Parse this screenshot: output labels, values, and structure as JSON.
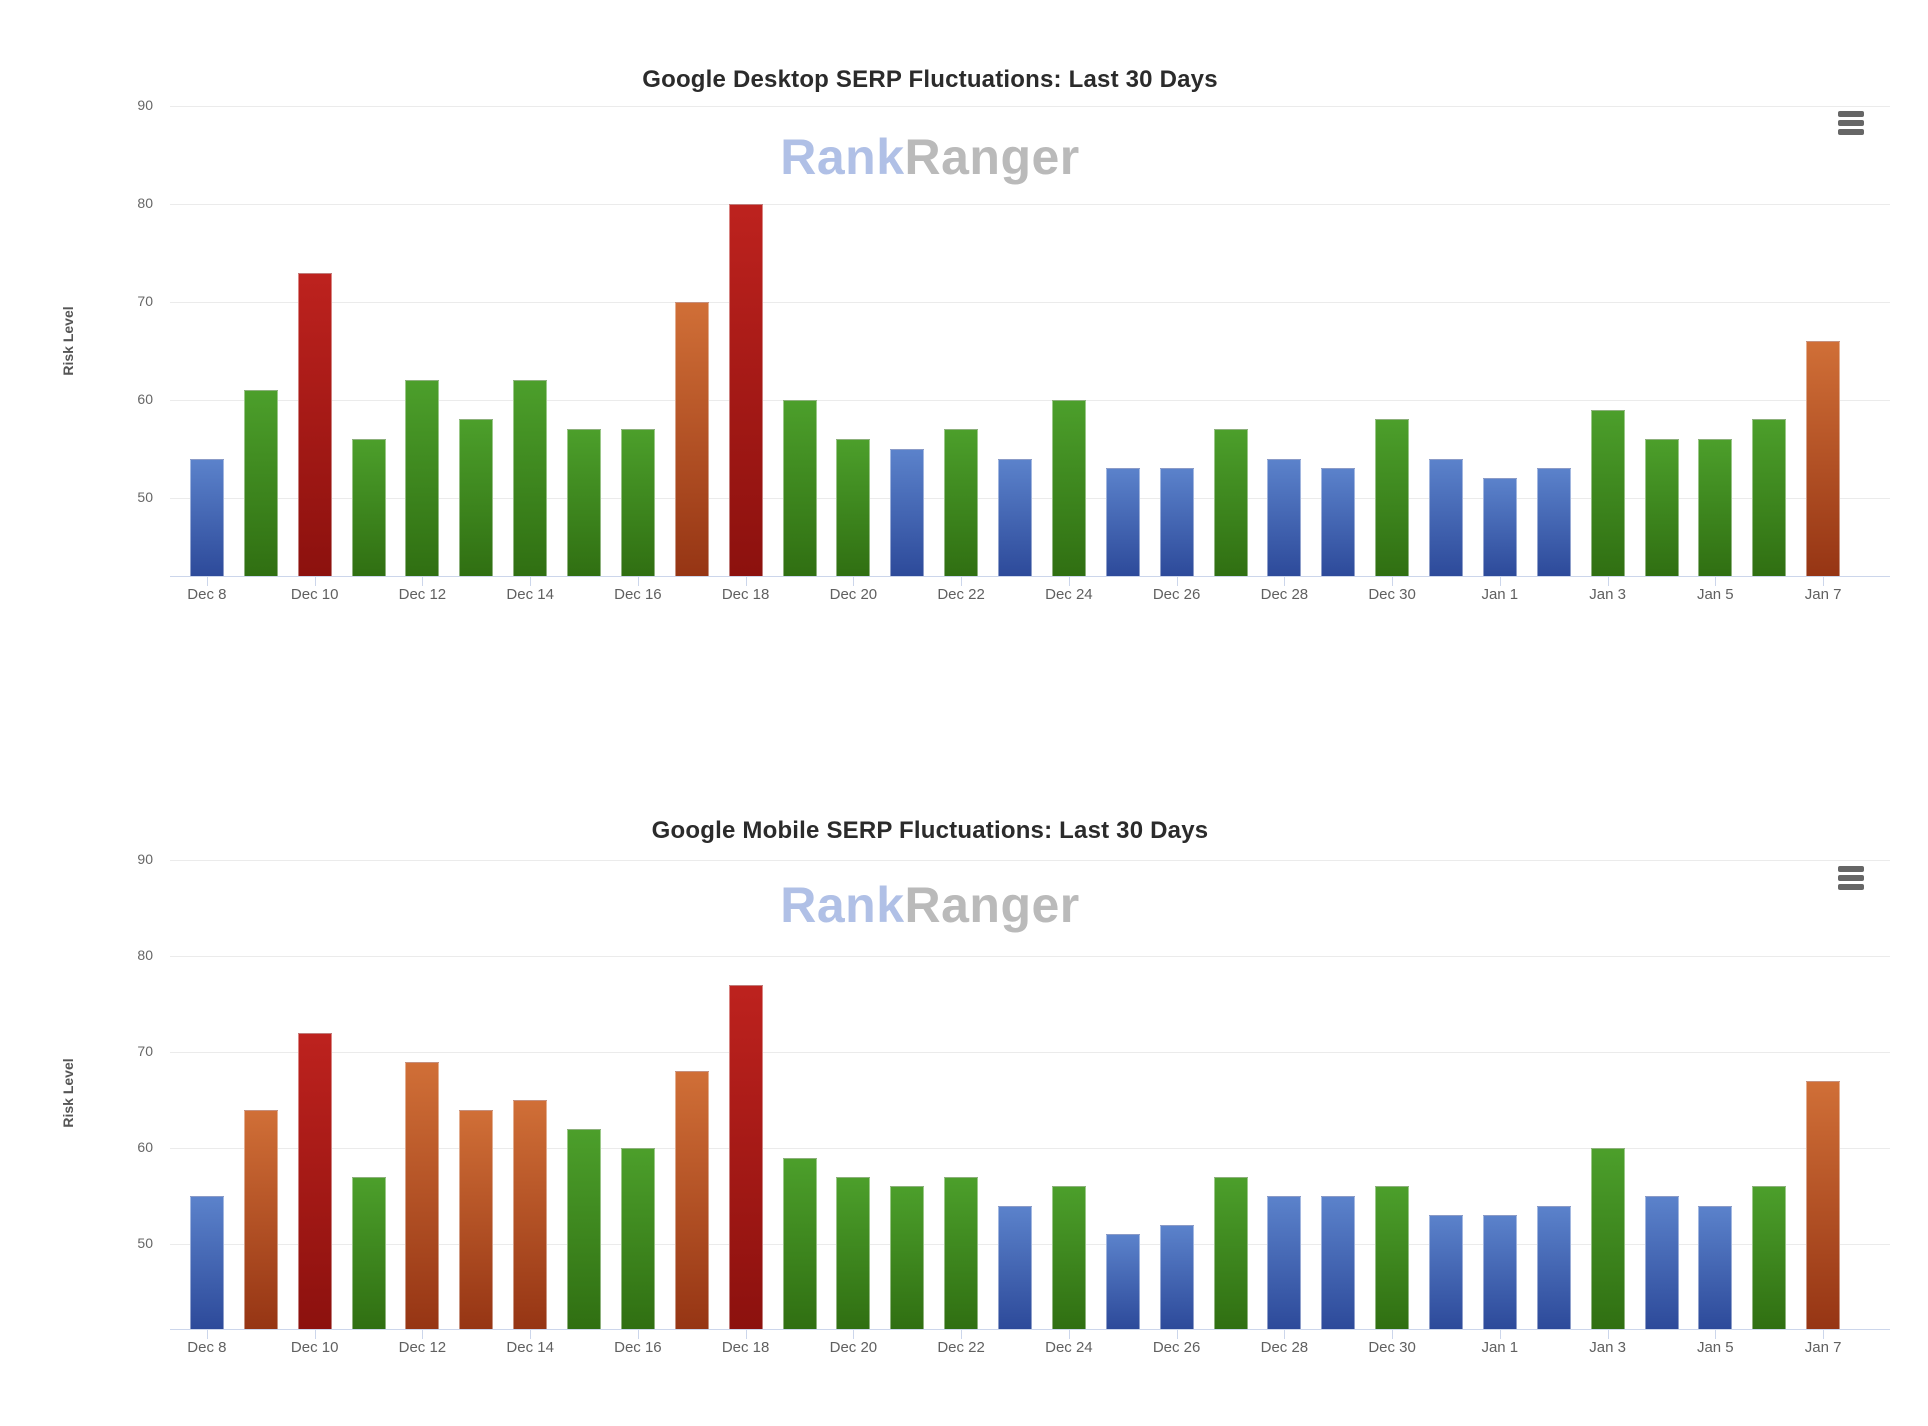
{
  "charts": [
    {
      "title": "Google Desktop SERP Fluctuations: Last 30 Days",
      "watermark": {
        "rank": "Rank",
        "ranger": "Ranger"
      },
      "menu_icon": "hamburger-icon"
    },
    {
      "title": "Google Mobile SERP Fluctuations: Last 30 Days",
      "watermark": {
        "rank": "Rank",
        "ranger": "Ranger"
      },
      "menu_icon": "hamburger-icon"
    }
  ],
  "chart_data": [
    {
      "type": "bar",
      "title": "Google Desktop SERP Fluctuations: Last 30 Days",
      "xlabel": "",
      "ylabel": "Risk Level",
      "yticks": [
        90,
        80,
        70,
        60,
        50
      ],
      "ylim": [
        42,
        91
      ],
      "grid": "horizontal",
      "legend": false,
      "x_tick_step": 2,
      "categories": [
        "Dec 8",
        "Dec 9",
        "Dec 10",
        "Dec 11",
        "Dec 12",
        "Dec 13",
        "Dec 14",
        "Dec 15",
        "Dec 16",
        "Dec 17",
        "Dec 18",
        "Dec 19",
        "Dec 20",
        "Dec 21",
        "Dec 22",
        "Dec 23",
        "Dec 24",
        "Dec 25",
        "Dec 26",
        "Dec 27",
        "Dec 28",
        "Dec 29",
        "Dec 30",
        "Dec 31",
        "Jan 1",
        "Jan 2",
        "Jan 3",
        "Jan 4",
        "Jan 5",
        "Jan 6",
        "Jan 7"
      ],
      "values": [
        54,
        61,
        73,
        56,
        62,
        58,
        62,
        57,
        57,
        70,
        80,
        60,
        56,
        55,
        57,
        54,
        60,
        53,
        53,
        57,
        54,
        53,
        58,
        54,
        52,
        53,
        59,
        56,
        56,
        58,
        66
      ],
      "bar_colors": [
        "blue",
        "green",
        "red",
        "green",
        "green",
        "green",
        "green",
        "green",
        "green",
        "orange",
        "red",
        "green",
        "green",
        "blue",
        "green",
        "blue",
        "green",
        "blue",
        "blue",
        "green",
        "blue",
        "blue",
        "green",
        "blue",
        "blue",
        "blue",
        "green",
        "green",
        "green",
        "green",
        "orange"
      ]
    },
    {
      "type": "bar",
      "title": "Google Mobile SERP Fluctuations: Last 30 Days",
      "xlabel": "",
      "ylabel": "Risk Level",
      "yticks": [
        90,
        80,
        70,
        60,
        50
      ],
      "ylim": [
        41,
        91
      ],
      "grid": "horizontal",
      "legend": false,
      "x_tick_step": 2,
      "categories": [
        "Dec 8",
        "Dec 9",
        "Dec 10",
        "Dec 11",
        "Dec 12",
        "Dec 13",
        "Dec 14",
        "Dec 15",
        "Dec 16",
        "Dec 17",
        "Dec 18",
        "Dec 19",
        "Dec 20",
        "Dec 21",
        "Dec 22",
        "Dec 23",
        "Dec 24",
        "Dec 25",
        "Dec 26",
        "Dec 27",
        "Dec 28",
        "Dec 29",
        "Dec 30",
        "Dec 31",
        "Jan 1",
        "Jan 2",
        "Jan 3",
        "Jan 4",
        "Jan 5",
        "Jan 6",
        "Jan 7"
      ],
      "values": [
        55,
        64,
        72,
        57,
        69,
        64,
        65,
        62,
        60,
        68,
        77,
        59,
        57,
        56,
        57,
        54,
        56,
        51,
        52,
        57,
        55,
        55,
        56,
        53,
        53,
        54,
        60,
        55,
        54,
        56,
        67
      ],
      "bar_colors": [
        "blue",
        "orange",
        "red",
        "green",
        "orange",
        "orange",
        "orange",
        "green",
        "green",
        "orange",
        "red",
        "green",
        "green",
        "green",
        "green",
        "blue",
        "green",
        "blue",
        "blue",
        "green",
        "blue",
        "blue",
        "green",
        "blue",
        "blue",
        "blue",
        "green",
        "blue",
        "blue",
        "green",
        "orange"
      ]
    }
  ],
  "palette": {
    "blue_top": "#5b82cb",
    "blue_bottom": "#2d4a9a",
    "green_top": "#4c9f2b",
    "green_bottom": "#306f12",
    "red_top": "#bd221e",
    "red_bottom": "#8c110e",
    "orange_top": "#d06f37",
    "orange_bottom": "#963514",
    "watermark_rank": "#b0c0e6",
    "watermark_ranger": "#bababa",
    "axis_line": "#ccd6eb",
    "gridline": "#ebebeb"
  }
}
